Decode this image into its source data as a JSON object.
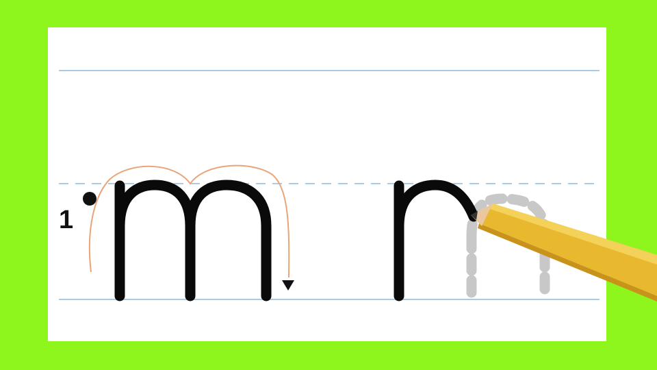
{
  "worksheet": {
    "step_number": "1",
    "traced_letter": "m",
    "letter_in_progress": "m",
    "stroke_start_marker": "start-dot",
    "stroke_direction_marker": "down-arrow"
  },
  "colors": {
    "background": "#8ef51d",
    "paper": "#ffffff",
    "guide_line": "#a9cbe6",
    "letter_stroke": "#0a0a0a",
    "path_guide": "#e9a47a",
    "trace_dots": "#c8c8c8",
    "pencil_body": "#e8b92f",
    "pencil_tip": "#e9c79f"
  }
}
